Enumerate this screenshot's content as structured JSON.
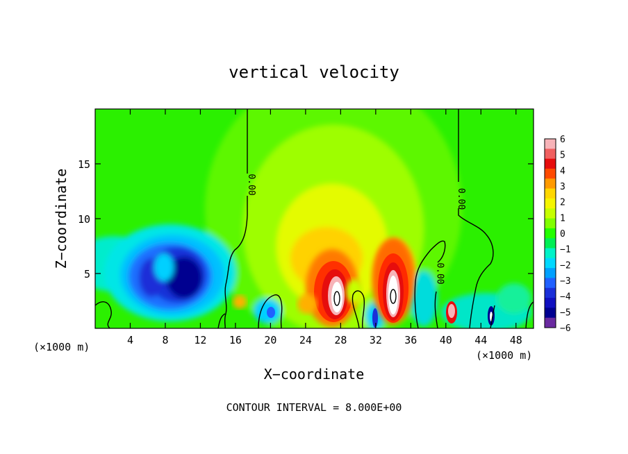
{
  "chart_data": {
    "type": "heatmap",
    "title": "vertical velocity",
    "xlabel": "X−coordinate",
    "ylabel": "Z−coordinate",
    "x_unit": "(×1000 m)",
    "x_unit_right": "(×1000 m)",
    "xlim": [
      0,
      50
    ],
    "ylim": [
      0,
      20
    ],
    "x_ticks": [
      4,
      8,
      12,
      16,
      20,
      24,
      28,
      32,
      36,
      40,
      44,
      48
    ],
    "y_ticks": [
      5,
      10,
      15
    ],
    "footer": "CONTOUR INTERVAL = 8.000E+00",
    "contour_labels": [
      {
        "text": "0.00",
        "x": 17.8,
        "y": 13.1,
        "rot": 90
      },
      {
        "text": "0.00",
        "x": 41.7,
        "y": 11.8,
        "rot": 90
      },
      {
        "text": "0.00",
        "x": 39.3,
        "y": 5.0,
        "rot": 90
      }
    ],
    "colorbar": {
      "labels": [
        "6",
        "5",
        "4",
        "3",
        "2",
        "1",
        "0",
        "−1",
        "−2",
        "−3",
        "−4",
        "−5",
        "−6"
      ],
      "colors": [
        "#f7b3b8",
        "#f06060",
        "#e60d0d",
        "#ff4a00",
        "#ff9a00",
        "#ffd700",
        "#f5f500",
        "#c6ff00",
        "#80ff00",
        "#22ff00",
        "#00ef55",
        "#00f2c8",
        "#00d8ff",
        "#00a0ff",
        "#2060ff",
        "#1a2fd8",
        "#1010c0",
        "#000090",
        "#6a2aa0"
      ]
    },
    "features": [
      {
        "x": 9.5,
        "y": 3.8,
        "value": -5.0
      },
      {
        "x": 27.7,
        "y": 3.3,
        "value": 6.0
      },
      {
        "x": 33.7,
        "y": 3.2,
        "value": 6.0
      },
      {
        "x": 27.2,
        "y": 7.0,
        "value": 1.8
      },
      {
        "x": 1.5,
        "y": 5.5,
        "value": -2.0
      },
      {
        "x": 20.0,
        "y": 1.5,
        "value": -3.0
      },
      {
        "x": 32.2,
        "y": 1.5,
        "value": -4.0
      },
      {
        "x": 40.7,
        "y": 1.5,
        "value": 4.0
      },
      {
        "x": 45.2,
        "y": 1.5,
        "value": -4.5
      },
      {
        "x": 16.5,
        "y": 2.5,
        "value": 3.0
      }
    ]
  }
}
